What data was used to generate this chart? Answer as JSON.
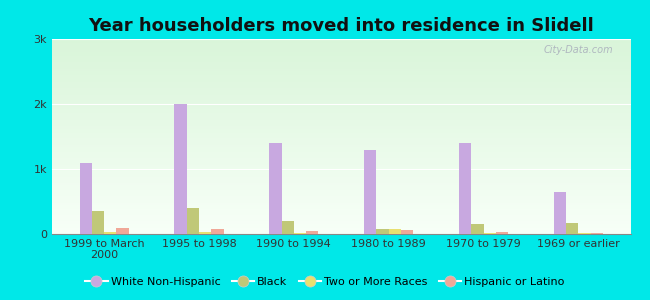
{
  "title": "Year householders moved into residence in Slidell",
  "categories": [
    "1999 to March\n2000",
    "1995 to 1998",
    "1990 to 1994",
    "1980 to 1989",
    "1970 to 1979",
    "1969 or earlier"
  ],
  "series": {
    "White Non-Hispanic": [
      1100,
      2000,
      1400,
      1300,
      1400,
      650
    ],
    "Black": [
      350,
      400,
      200,
      75,
      150,
      175
    ],
    "Two or More Races": [
      30,
      30,
      20,
      70,
      20,
      15
    ],
    "Hispanic or Latino": [
      100,
      75,
      50,
      60,
      25,
      20
    ]
  },
  "colors": {
    "White Non-Hispanic": "#c8a8e0",
    "Black": "#c0c878",
    "Two or More Races": "#e8e070",
    "Hispanic or Latino": "#f0a898"
  },
  "legend_marker_colors": {
    "White Non-Hispanic": "#c8a8e0",
    "Black": "#c0c878",
    "Two or More Races": "#e8e070",
    "Hispanic or Latino": "#f0a898"
  },
  "ylim": [
    0,
    3000
  ],
  "yticks": [
    0,
    1000,
    2000,
    3000
  ],
  "ytick_labels": [
    "0",
    "1k",
    "2k",
    "3k"
  ],
  "background_color": "#00e8e8",
  "watermark": "City-Data.com",
  "title_fontsize": 13,
  "tick_fontsize": 8,
  "legend_fontsize": 8,
  "bar_width": 0.13
}
